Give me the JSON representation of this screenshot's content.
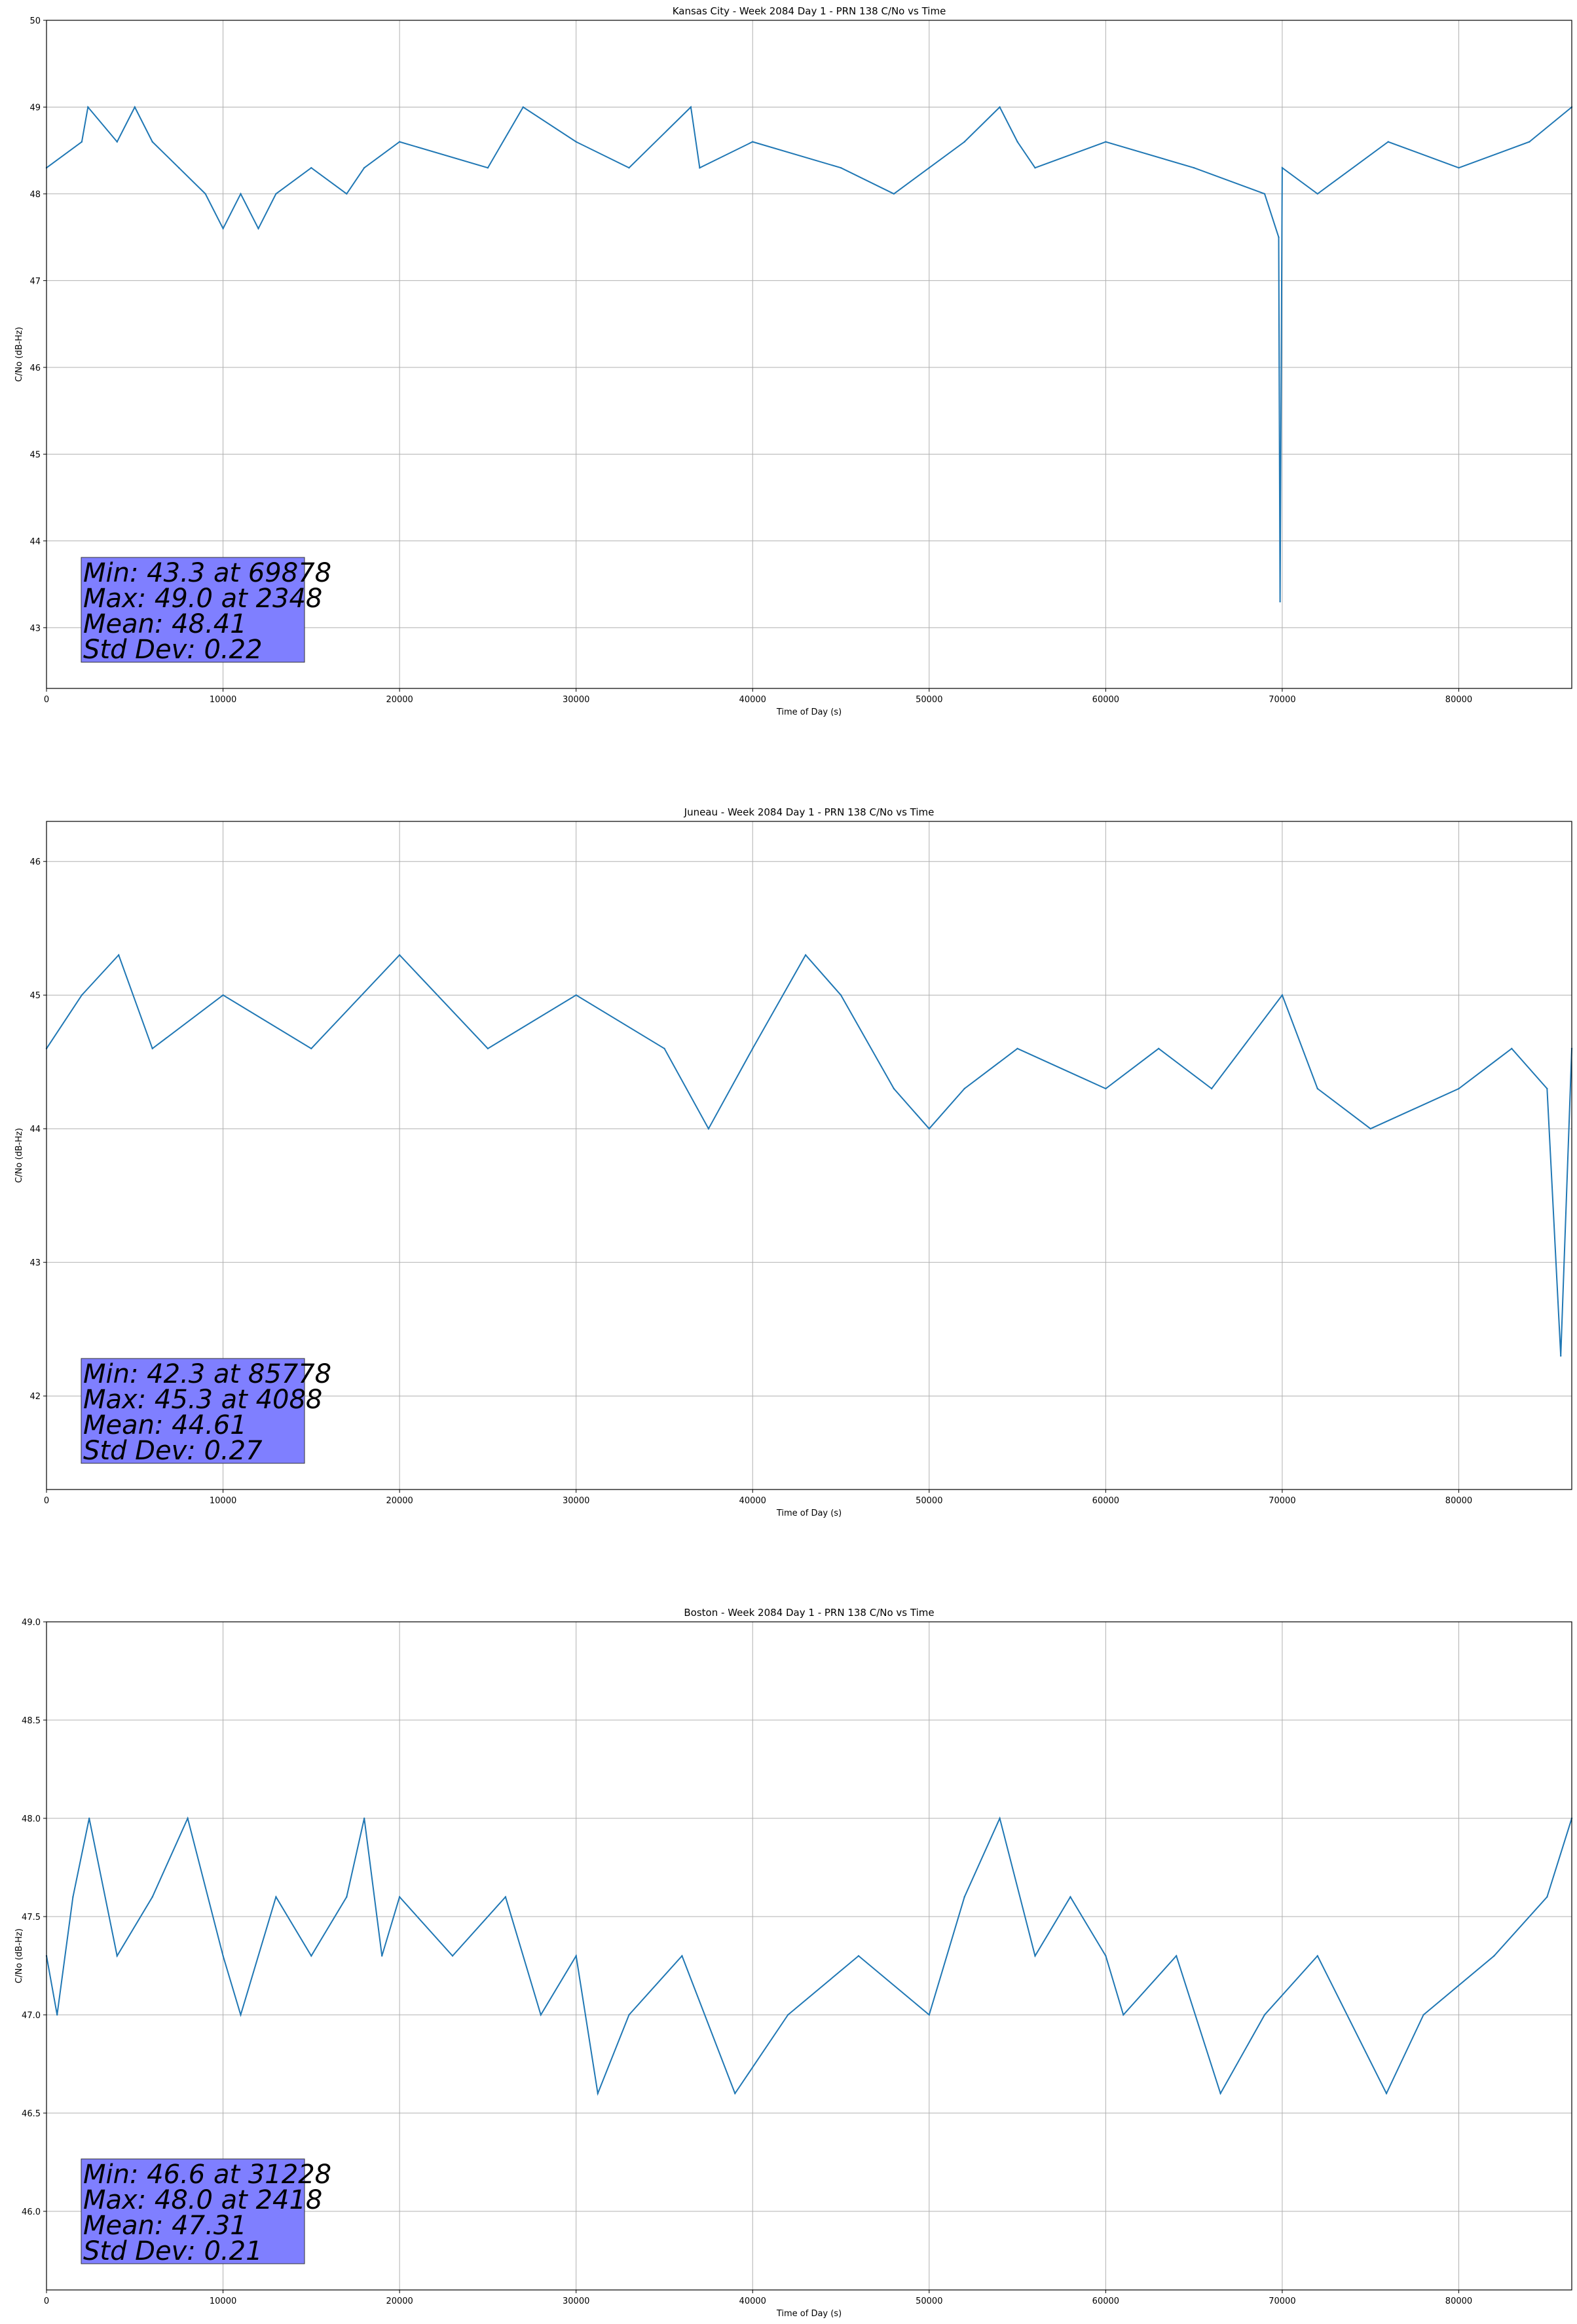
{
  "chart_data": [
    {
      "type": "line",
      "title": "Kansas City - Week 2084 Day 1 - PRN 138 C/No vs Time",
      "xlabel": "Time of Day (s)",
      "ylabel": "C/No (dB-Hz)",
      "xlim": [
        0,
        86400
      ],
      "ylim": [
        42.3,
        50
      ],
      "xticks": [
        "0",
        "10000",
        "20000",
        "30000",
        "40000",
        "50000",
        "60000",
        "70000",
        "80000"
      ],
      "yticks": [
        "43",
        "44",
        "45",
        "46",
        "47",
        "48",
        "49",
        "50"
      ],
      "grid": true,
      "color": "#1f77b4",
      "series": [
        {
          "x": [
            0,
            2000,
            2348,
            4000,
            5000,
            6000,
            7500,
            9000,
            10000,
            11000,
            12000,
            13000,
            15000,
            17000,
            18000,
            20000,
            25000,
            27000,
            30000,
            33000,
            36500,
            37000,
            40000,
            45000,
            48000,
            50000,
            52000,
            54000,
            55000,
            56000,
            60000,
            65000,
            69000,
            69800,
            69878,
            70000,
            72000,
            76000,
            80000,
            84000,
            86400
          ],
          "y": [
            48.3,
            48.6,
            49.0,
            48.6,
            49.0,
            48.6,
            48.3,
            48.0,
            47.6,
            48.0,
            47.6,
            48.0,
            48.3,
            48.0,
            48.3,
            48.6,
            48.3,
            49.0,
            48.6,
            48.3,
            49.0,
            48.3,
            48.6,
            48.3,
            48.0,
            48.3,
            48.6,
            49.0,
            48.6,
            48.3,
            48.6,
            48.3,
            48.0,
            47.5,
            43.3,
            48.3,
            48.0,
            48.6,
            48.3,
            48.6,
            49.0
          ]
        }
      ],
      "annotation": {
        "lines": [
          "Min: 43.3 at 69878",
          "Max: 49.0 at 2348",
          "Mean: 48.41",
          "Std Dev: 0.22"
        ],
        "background": "#7f7fff"
      }
    },
    {
      "type": "line",
      "title": "Juneau - Week 2084 Day 1 - PRN 138 C/No vs Time",
      "xlabel": "Time of Day (s)",
      "ylabel": "C/No (dB-Hz)",
      "xlim": [
        0,
        86400
      ],
      "ylim": [
        41.3,
        46.3
      ],
      "xticks": [
        "0",
        "10000",
        "20000",
        "30000",
        "40000",
        "50000",
        "60000",
        "70000",
        "80000"
      ],
      "yticks": [
        "42",
        "43",
        "44",
        "45",
        "46"
      ],
      "grid": true,
      "color": "#1f77b4",
      "series": [
        {
          "x": [
            0,
            2000,
            4088,
            6000,
            10000,
            15000,
            20000,
            25000,
            30000,
            35000,
            37500,
            40000,
            43000,
            45000,
            48000,
            50000,
            52000,
            55000,
            60000,
            63000,
            66000,
            70000,
            72000,
            75000,
            80000,
            83000,
            85000,
            85778,
            86400
          ],
          "y": [
            44.6,
            45.0,
            45.3,
            44.6,
            45.0,
            44.6,
            45.3,
            44.6,
            45.0,
            44.6,
            44.0,
            44.6,
            45.3,
            45.0,
            44.3,
            44.0,
            44.3,
            44.6,
            44.3,
            44.6,
            44.3,
            45.0,
            44.3,
            44.0,
            44.3,
            44.6,
            44.3,
            42.3,
            44.6
          ]
        }
      ],
      "annotation": {
        "lines": [
          "Min: 42.3 at 85778",
          "Max: 45.3 at 4088",
          "Mean: 44.61",
          "Std Dev: 0.27"
        ],
        "background": "#7f7fff"
      }
    },
    {
      "type": "line",
      "title": "Boston - Week 2084 Day 1 - PRN 138 C/No vs Time",
      "xlabel": "Time of Day (s)",
      "ylabel": "C/No (dB-Hz)",
      "xlim": [
        0,
        86400
      ],
      "ylim": [
        45.6,
        49.0
      ],
      "xticks": [
        "0",
        "10000",
        "20000",
        "30000",
        "40000",
        "50000",
        "60000",
        "70000",
        "80000"
      ],
      "yticks": [
        "46.0",
        "46.5",
        "47.0",
        "47.5",
        "48.0",
        "48.5",
        "49.0"
      ],
      "grid": true,
      "color": "#1f77b4",
      "series": [
        {
          "x": [
            0,
            600,
            1500,
            2418,
            4000,
            6000,
            8000,
            10000,
            11000,
            13000,
            15000,
            17000,
            18000,
            19000,
            20000,
            23000,
            26000,
            28000,
            30000,
            31228,
            33000,
            36000,
            39000,
            42000,
            46000,
            50000,
            52000,
            54000,
            56000,
            58000,
            60000,
            61000,
            64000,
            66500,
            69000,
            72000,
            75900,
            78000,
            82000,
            85000,
            86400
          ],
          "y": [
            47.3,
            47.0,
            47.6,
            48.0,
            47.3,
            47.6,
            48.0,
            47.3,
            47.0,
            47.6,
            47.3,
            47.6,
            48.0,
            47.3,
            47.6,
            47.3,
            47.6,
            47.0,
            47.3,
            46.6,
            47.0,
            47.3,
            46.6,
            47.0,
            47.3,
            47.0,
            47.6,
            48.0,
            47.3,
            47.6,
            47.3,
            47.0,
            47.3,
            46.6,
            47.0,
            47.3,
            46.6,
            47.0,
            47.3,
            47.6,
            48.0
          ]
        }
      ],
      "annotation": {
        "lines": [
          "Min: 46.6 at 31228",
          "Max: 48.0 at 2418",
          "Mean: 47.31",
          "Std Dev: 0.21"
        ],
        "background": "#7f7fff"
      }
    }
  ]
}
